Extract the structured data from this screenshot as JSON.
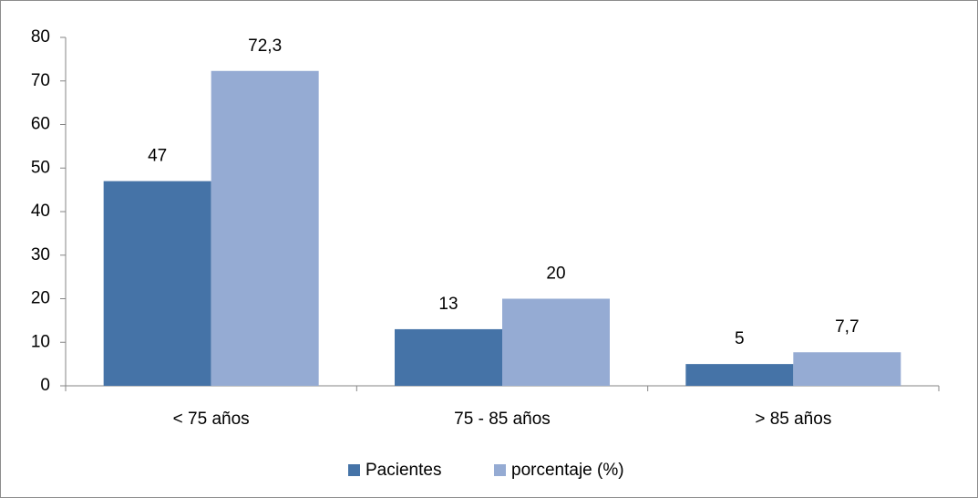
{
  "chart_data": {
    "type": "bar",
    "categories": [
      "< 75 años",
      "75 - 85 años",
      "> 85 años"
    ],
    "series": [
      {
        "name": "Pacientes",
        "color": "#4573a7",
        "values": [
          47,
          13,
          5
        ]
      },
      {
        "name": "porcentaje (%)",
        "color": "#95abd3",
        "values": [
          72.3,
          20,
          7.7
        ],
        "value_labels": [
          "72,3",
          "20",
          "7,7"
        ]
      }
    ],
    "ylim": [
      0,
      80
    ],
    "yticks": [
      0,
      10,
      20,
      30,
      40,
      50,
      60,
      70,
      80
    ],
    "grid": false,
    "legend": "bottom"
  }
}
